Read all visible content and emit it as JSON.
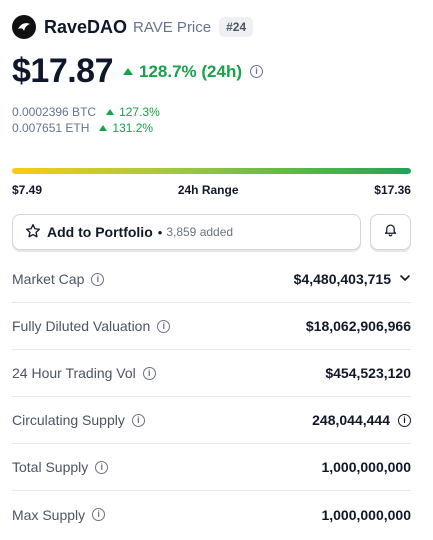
{
  "header": {
    "coin_name": "RaveDAO",
    "coin_symbol_label": "RAVE Price",
    "rank": "#24",
    "logo_icon": "ravedao-logo-icon"
  },
  "price": {
    "value": "$17.87",
    "change_24h": "128.7% (24h)",
    "change_direction": "up"
  },
  "conversions": {
    "btc_value": "0.0002396 BTC",
    "btc_change": "127.3%",
    "eth_value": "0.007651 ETH",
    "eth_change": "131.2%"
  },
  "range": {
    "low": "$7.49",
    "label": "24h Range",
    "high": "$17.36"
  },
  "portfolio": {
    "button_label": "Add to Portfolio",
    "separator": "•",
    "added_count": "3,859 added",
    "star_icon": "star-outline-icon",
    "bell_icon": "bell-icon"
  },
  "stats": [
    {
      "label": "Market Cap",
      "value": "$4,480,403,715",
      "has_chevron": true
    },
    {
      "label": "Fully Diluted Valuation",
      "value": "$18,062,906,966"
    },
    {
      "label": "24 Hour Trading Vol",
      "value": "$454,523,120"
    },
    {
      "label": "Circulating Supply",
      "value": "248,044,444",
      "has_info": true
    },
    {
      "label": "Total Supply",
      "value": "1,000,000,000"
    },
    {
      "label": "Max Supply",
      "value": "1,000,000,000"
    }
  ],
  "colors": {
    "positive": "#16a34a",
    "range_start": "#facc15",
    "range_end": "#22a35a"
  }
}
